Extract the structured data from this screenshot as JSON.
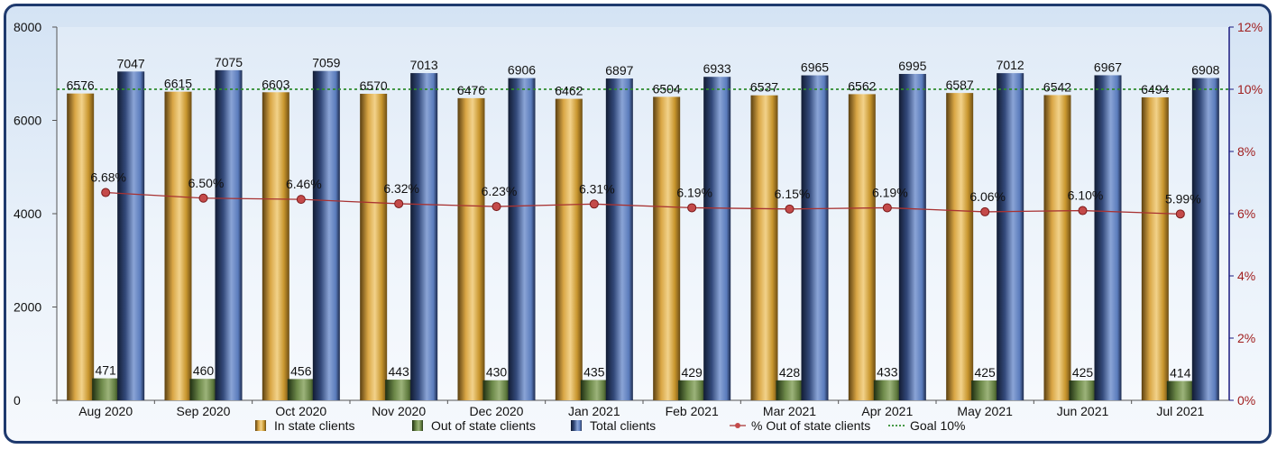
{
  "chart_data": {
    "type": "bar",
    "categories": [
      "Aug 2020",
      "Sep 2020",
      "Oct 2020",
      "Nov 2020",
      "Dec 2020",
      "Jan 2021",
      "Feb 2021",
      "Mar 2021",
      "Apr 2021",
      "May 2021",
      "Jun 2021",
      "Jul 2021"
    ],
    "series": [
      {
        "name": "In state clients",
        "type": "bar",
        "axis": "left",
        "color": "#c8962e",
        "values": [
          6576,
          6615,
          6603,
          6570,
          6476,
          6462,
          6504,
          6537,
          6562,
          6587,
          6542,
          6494
        ]
      },
      {
        "name": "Out of state clients",
        "type": "bar",
        "axis": "left",
        "color": "#5f7a3e",
        "values": [
          471,
          460,
          456,
          443,
          430,
          435,
          429,
          428,
          433,
          425,
          425,
          414
        ]
      },
      {
        "name": "Total clients",
        "type": "bar",
        "axis": "left",
        "color": "#4a6aa8",
        "values": [
          7047,
          7075,
          7059,
          7013,
          6906,
          6897,
          6933,
          6965,
          6995,
          7012,
          6967,
          6908
        ]
      },
      {
        "name": "% Out of state clients",
        "type": "line",
        "axis": "right",
        "color": "#a83232",
        "values": [
          6.68,
          6.5,
          6.46,
          6.32,
          6.23,
          6.31,
          6.19,
          6.15,
          6.19,
          6.06,
          6.1,
          5.99
        ],
        "labels": [
          "6.68%",
          "6.50%",
          "6.46%",
          "6.32%",
          "6.23%",
          "6.31%",
          "6.19%",
          "6.15%",
          "6.19%",
          "6.06%",
          "6.10%",
          "5.99%"
        ]
      },
      {
        "name": "Goal 10%",
        "type": "reference-line",
        "axis": "right",
        "color": "#2e8b2e",
        "value": 10
      }
    ],
    "y_left": {
      "ylim": [
        0,
        8000
      ],
      "ticks": [
        "0",
        "2000",
        "4000",
        "6000",
        "8000"
      ]
    },
    "y_right": {
      "ylim": [
        0,
        12
      ],
      "ticks": [
        "0%",
        "2%",
        "4%",
        "6%",
        "8%",
        "10%",
        "12%"
      ],
      "color": "#a01e1e"
    },
    "grid": false,
    "legend_position": "bottom"
  }
}
